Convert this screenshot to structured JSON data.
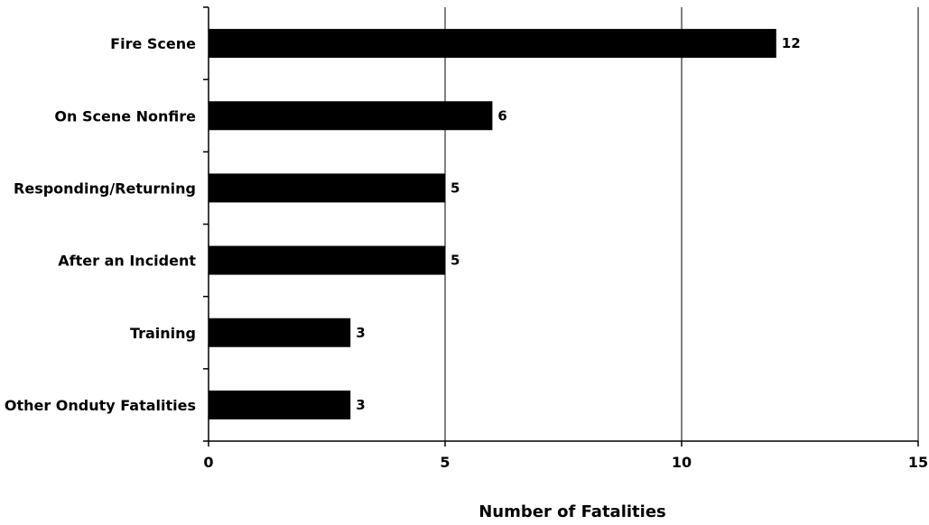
{
  "chart_data": {
    "type": "bar",
    "orientation": "horizontal",
    "categories": [
      "Fire Scene",
      "On Scene Nonfire",
      "Responding/Returning",
      "After an Incident",
      "Training",
      "Other Onduty Fatalities"
    ],
    "values": [
      12,
      6,
      5,
      5,
      3,
      3
    ],
    "data_labels": [
      "12",
      "6",
      "5",
      "5",
      "3",
      "3"
    ],
    "xlabel": "Number of Fatalities",
    "ylabel": "",
    "xlim": [
      0,
      15
    ],
    "xticks": [
      0,
      5,
      10,
      15
    ],
    "xtick_labels": [
      "0",
      "5",
      "10",
      "15"
    ],
    "grid": "vertical",
    "bar_color": "#000000",
    "legend": "none"
  }
}
